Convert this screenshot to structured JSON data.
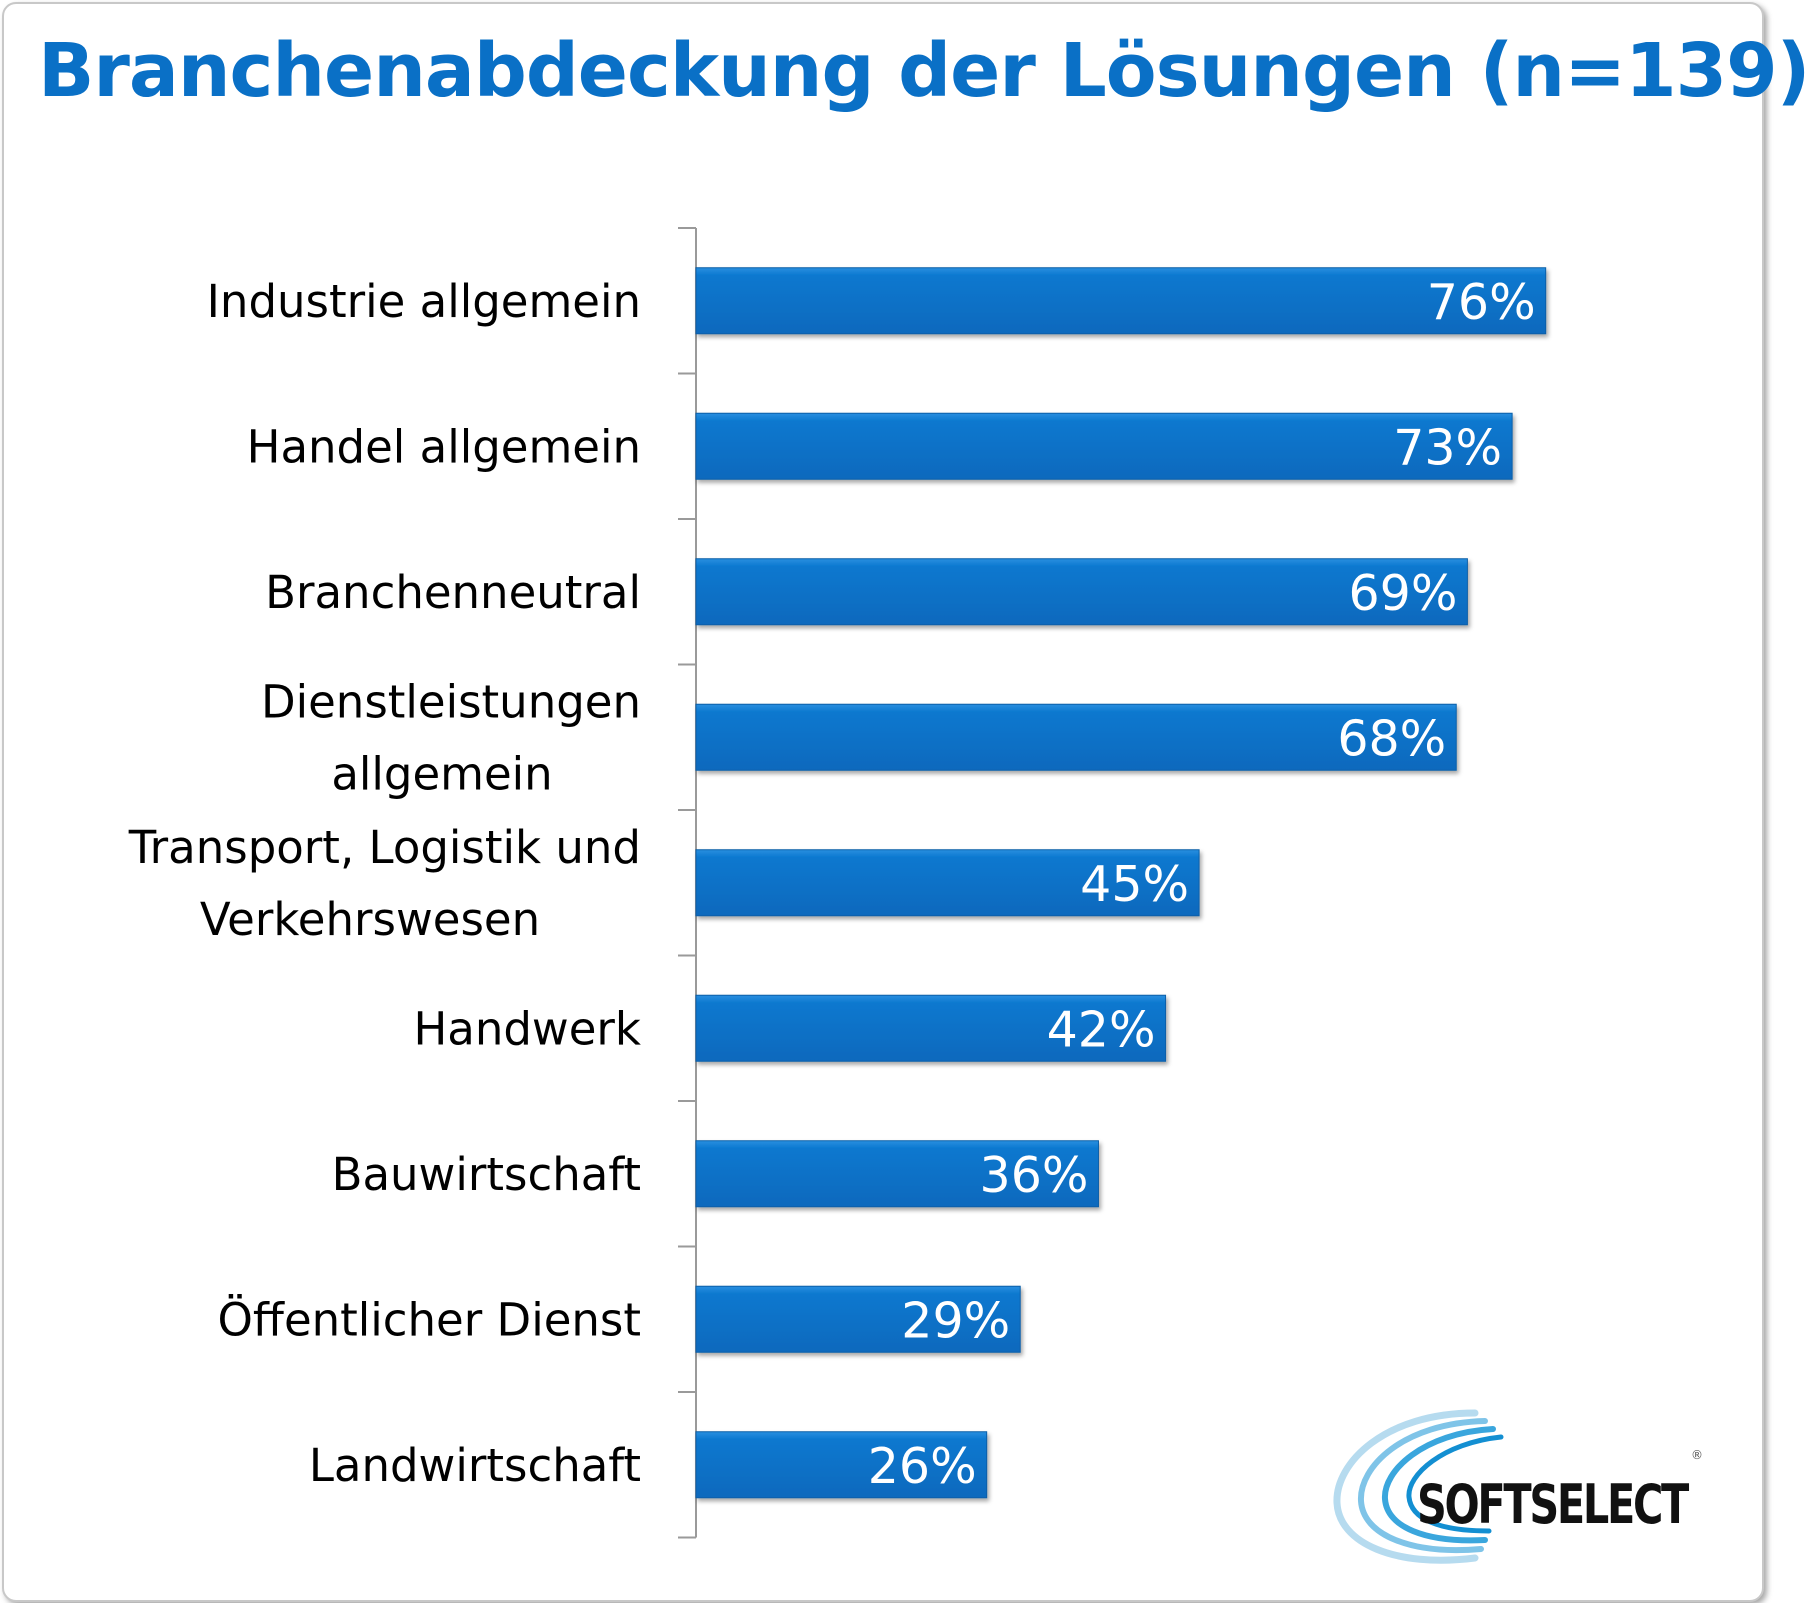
{
  "chart_data": {
    "type": "bar",
    "orientation": "horizontal",
    "title": "Branchenabdeckung der Lösungen (n=139)",
    "categories": [
      [
        "Industrie allgemein"
      ],
      [
        "Handel allgemein"
      ],
      [
        "Branchenneutral"
      ],
      [
        "Dienstleistungen",
        "allgemein"
      ],
      [
        "Transport, Logistik und",
        "Verkehrswesen"
      ],
      [
        "Handwerk"
      ],
      [
        "Bauwirtschaft"
      ],
      [
        "Öffentlicher Dienst"
      ],
      [
        "Landwirtschaft"
      ]
    ],
    "values": [
      76,
      73,
      69,
      68,
      45,
      42,
      36,
      29,
      26
    ],
    "value_labels": [
      "76%",
      "73%",
      "69%",
      "68%",
      "45%",
      "42%",
      "36%",
      "29%",
      "26%"
    ],
    "bar_color": "#0a78cf",
    "grid": false,
    "legend": "none"
  },
  "logo": {
    "text_main": "SOFTSELECT",
    "registered_mark": "®"
  },
  "colors": {
    "title": "#0a70c6",
    "bar": "#0a78cf",
    "axis": "#9a9a9a"
  }
}
